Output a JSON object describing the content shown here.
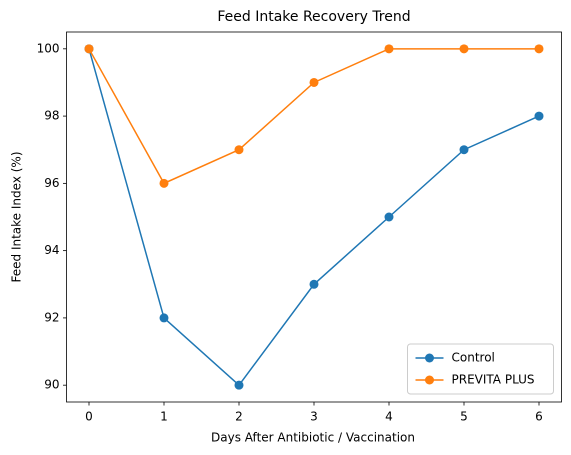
{
  "chart_data": {
    "type": "line",
    "title": "Feed Intake Recovery Trend",
    "x_label": "Days After Antibiotic / Vaccination",
    "y_label": "Feed Intake Index (%)",
    "x": [
      0,
      1,
      2,
      3,
      4,
      5,
      6
    ],
    "series": [
      {
        "name": "Control",
        "color": "#1f77b4",
        "values": [
          100,
          92,
          90,
          93,
          95,
          97,
          98
        ]
      },
      {
        "name": "PREVITA PLUS",
        "color": "#ff7f0e",
        "values": [
          100,
          96,
          97,
          99,
          100,
          100,
          100
        ]
      }
    ],
    "xlim": [
      -0.3,
      6.3
    ],
    "xticks": [
      0,
      1,
      2,
      3,
      4,
      5,
      6
    ],
    "ylim": [
      89.5,
      100.5
    ],
    "yticks": [
      90,
      92,
      94,
      96,
      98,
      100
    ],
    "grid": false,
    "legend": "lower right"
  }
}
